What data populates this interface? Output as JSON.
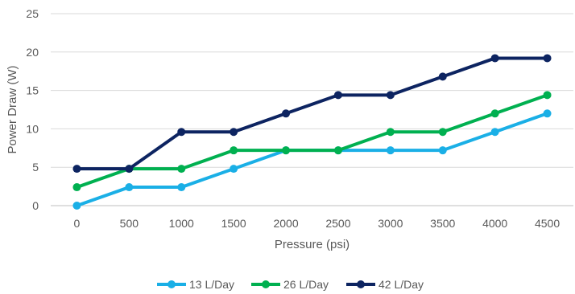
{
  "chart_data": {
    "type": "line",
    "title": "",
    "xlabel": "Pressure (psi)",
    "ylabel": "Power Draw (W)",
    "x": [
      0,
      500,
      1000,
      1500,
      2000,
      2500,
      3000,
      3500,
      4000,
      4500
    ],
    "ylim": [
      0,
      25
    ],
    "yticks": [
      0,
      5,
      10,
      15,
      20,
      25
    ],
    "grid": true,
    "legend": "bottom",
    "series": [
      {
        "name": "13 L/Day",
        "color": "#1AAFE6",
        "values": [
          0,
          2.4,
          2.4,
          4.8,
          7.2,
          7.2,
          7.2,
          7.2,
          9.6,
          12
        ]
      },
      {
        "name": "26 L/Day",
        "color": "#00B050",
        "values": [
          2.4,
          4.8,
          4.8,
          7.2,
          7.2,
          7.2,
          9.6,
          9.6,
          12,
          14.4
        ]
      },
      {
        "name": "42 L/Day",
        "color": "#0D2461",
        "values": [
          4.8,
          4.8,
          9.6,
          9.6,
          12,
          14.4,
          14.4,
          16.8,
          19.2,
          19.2
        ]
      }
    ]
  }
}
